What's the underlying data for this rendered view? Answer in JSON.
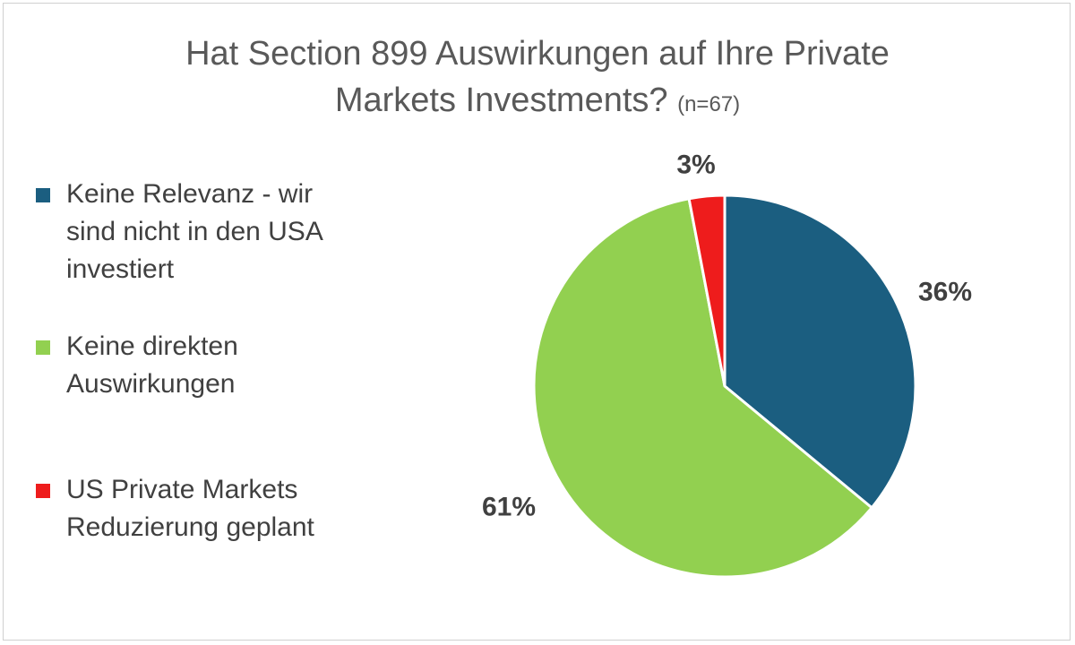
{
  "chart_data": {
    "type": "pie",
    "title": "Hat Section 899 Auswirkungen auf Ihre Private Markets Investments?",
    "title_line1": "Hat Section 899 Auswirkungen auf Ihre Private",
    "title_line2": "Markets Investments?",
    "sample_note": "(n=67)",
    "start_angle_deg": 0,
    "direction": "clockwise",
    "slices": [
      {
        "label": "Keine Relevanz - wir sind nicht in den USA investiert",
        "label_lines": [
          "Keine Relevanz - wir",
          "sind nicht in den USA",
          "investiert"
        ],
        "value": 36,
        "display": "36%",
        "color": "#1b5e80"
      },
      {
        "label": "Keine direkten Auswirkungen",
        "label_lines": [
          "Keine direkten",
          "Auswirkungen"
        ],
        "value": 61,
        "display": "61%",
        "color": "#92d050"
      },
      {
        "label": "US Private Markets Reduzierung geplant",
        "label_lines": [
          "US Private Markets",
          "Reduzierung geplant"
        ],
        "value": 3,
        "display": "3%",
        "color": "#ee1c1c"
      }
    ],
    "legend_position": "left"
  }
}
